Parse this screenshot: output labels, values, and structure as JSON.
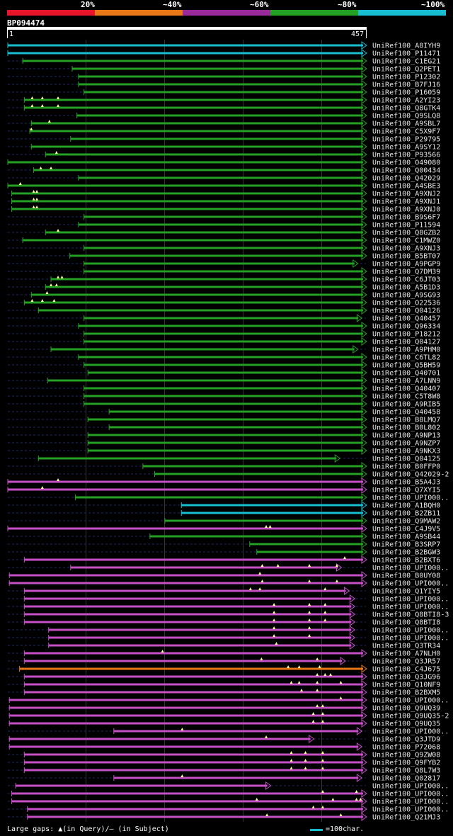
{
  "legend": {
    "segments": [
      {
        "label": "20%",
        "color": "#e8152a"
      },
      {
        "label": "~40%",
        "color": "#e87817"
      },
      {
        "label": "~60%",
        "color": "#9a2a9a"
      },
      {
        "label": "~80%",
        "color": "#24a024"
      },
      {
        "label": "~100%",
        "color": "#17becf"
      }
    ]
  },
  "query": {
    "id": "BP094474",
    "start_label": "1",
    "end_label": "457",
    "length": 457
  },
  "footer": {
    "gaps_text": "Large gaps: ▲(in Query)/– (in Subject)",
    "scale_text": "=100char."
  },
  "colors": {
    "cyan": "#17becf",
    "green": "#24a024",
    "purple": "#c64fc6",
    "orange": "#e87817",
    "dash": "#1a2a66",
    "marker": "#ffff99"
  },
  "chart_data": {
    "type": "alignment",
    "x_units": "query residue position",
    "x_range": [
      1,
      457
    ],
    "hits": [
      {
        "name": "UniRef100_A8IYH9",
        "color": "cyan",
        "start": 1,
        "end": 457,
        "markers": []
      },
      {
        "name": "UniRef100_P11471",
        "color": "cyan",
        "start": 1,
        "end": 457,
        "markers": []
      },
      {
        "name": "UniRef100_C1EG21",
        "color": "green",
        "start": 20,
        "end": 457,
        "markers": []
      },
      {
        "name": "UniRef100_Q2PET1",
        "color": "green",
        "start": 83,
        "end": 457,
        "markers": []
      },
      {
        "name": "UniRef100_P12302",
        "color": "green",
        "start": 91,
        "end": 457,
        "markers": []
      },
      {
        "name": "UniRef100_B7FJ16",
        "color": "green",
        "start": 91,
        "end": 457,
        "markers": []
      },
      {
        "name": "UniRef100_P16059",
        "color": "green",
        "start": 98,
        "end": 457,
        "markers": []
      },
      {
        "name": "UniRef100_A2YI23",
        "color": "green",
        "start": 22,
        "end": 457,
        "markers": [
          32,
          45,
          65
        ]
      },
      {
        "name": "UniRef100_Q8GTK4",
        "color": "green",
        "start": 22,
        "end": 457,
        "markers": [
          32,
          45,
          65
        ]
      },
      {
        "name": "UniRef100_Q9SLQ8",
        "color": "green",
        "start": 89,
        "end": 457,
        "markers": []
      },
      {
        "name": "UniRef100_A9SBL7",
        "color": "green",
        "start": 31,
        "end": 457,
        "markers": [
          54
        ]
      },
      {
        "name": "UniRef100_C5X9F7",
        "color": "green",
        "start": 29,
        "end": 457,
        "markers": [
          31
        ]
      },
      {
        "name": "UniRef100_P29795",
        "color": "green",
        "start": 81,
        "end": 457,
        "markers": []
      },
      {
        "name": "UniRef100_A9SY12",
        "color": "green",
        "start": 31,
        "end": 457,
        "markers": []
      },
      {
        "name": "UniRef100_P93566",
        "color": "green",
        "start": 49,
        "end": 457,
        "markers": [
          63
        ]
      },
      {
        "name": "UniRef100_O49080",
        "color": "green",
        "start": 1,
        "end": 457,
        "markers": []
      },
      {
        "name": "UniRef100_Q00434",
        "color": "green",
        "start": 34,
        "end": 457,
        "markers": [
          43,
          56
        ]
      },
      {
        "name": "UniRef100_Q42029",
        "color": "green",
        "start": 91,
        "end": 457,
        "markers": []
      },
      {
        "name": "UniRef100_A4SBE3",
        "color": "green",
        "start": 1,
        "end": 457,
        "markers": [
          17
        ]
      },
      {
        "name": "UniRef100_A9XNJ2",
        "color": "green",
        "start": 6,
        "end": 457,
        "markers": [
          34,
          38
        ]
      },
      {
        "name": "UniRef100_A9XNJ1",
        "color": "green",
        "start": 6,
        "end": 457,
        "markers": [
          34,
          38
        ]
      },
      {
        "name": "UniRef100_A9XNJ0",
        "color": "green",
        "start": 6,
        "end": 457,
        "markers": [
          34,
          38
        ]
      },
      {
        "name": "UniRef100_B9S6F7",
        "color": "green",
        "start": 98,
        "end": 457,
        "markers": []
      },
      {
        "name": "UniRef100_P11594",
        "color": "green",
        "start": 91,
        "end": 457,
        "markers": []
      },
      {
        "name": "UniRef100_Q8GZB2",
        "color": "green",
        "start": 49,
        "end": 457,
        "markers": [
          65
        ]
      },
      {
        "name": "UniRef100_C1MWZ0",
        "color": "green",
        "start": 20,
        "end": 457,
        "markers": []
      },
      {
        "name": "UniRef100_A9XNJ3",
        "color": "green",
        "start": 98,
        "end": 457,
        "markers": []
      },
      {
        "name": "UniRef100_B5BT07",
        "color": "green",
        "start": 80,
        "end": 457,
        "markers": []
      },
      {
        "name": "UniRef100_A9PGP9",
        "color": "green",
        "start": 98,
        "end": 446,
        "markers": []
      },
      {
        "name": "UniRef100_Q7DM39",
        "color": "green",
        "start": 98,
        "end": 457,
        "markers": []
      },
      {
        "name": "UniRef100_C6JT03",
        "color": "green",
        "start": 56,
        "end": 457,
        "markers": [
          65,
          70
        ]
      },
      {
        "name": "UniRef100_A5B1D3",
        "color": "green",
        "start": 49,
        "end": 457,
        "markers": [
          56,
          63
        ]
      },
      {
        "name": "UniRef100_A9SG93",
        "color": "green",
        "start": 31,
        "end": 457,
        "markers": [
          51
        ]
      },
      {
        "name": "UniRef100_O22536",
        "color": "green",
        "start": 22,
        "end": 457,
        "markers": [
          32,
          45,
          60
        ]
      },
      {
        "name": "UniRef100_Q04126",
        "color": "green",
        "start": 40,
        "end": 457,
        "markers": []
      },
      {
        "name": "UniRef100_Q40457",
        "color": "green",
        "start": 98,
        "end": 451,
        "markers": []
      },
      {
        "name": "UniRef100_Q96334",
        "color": "green",
        "start": 91,
        "end": 457,
        "markers": []
      },
      {
        "name": "UniRef100_P18212",
        "color": "green",
        "start": 98,
        "end": 457,
        "markers": []
      },
      {
        "name": "UniRef100_Q04127",
        "color": "green",
        "start": 98,
        "end": 457,
        "markers": []
      },
      {
        "name": "UniRef100_A9PHM0",
        "color": "green",
        "start": 56,
        "end": 446,
        "markers": []
      },
      {
        "name": "UniRef100_C6TL82",
        "color": "green",
        "start": 91,
        "end": 457,
        "markers": []
      },
      {
        "name": "UniRef100_Q5BH59",
        "color": "green",
        "start": 98,
        "end": 457,
        "markers": []
      },
      {
        "name": "UniRef100_Q40701",
        "color": "green",
        "start": 103,
        "end": 457,
        "markers": []
      },
      {
        "name": "UniRef100_A7LNN9",
        "color": "green",
        "start": 52,
        "end": 457,
        "markers": []
      },
      {
        "name": "UniRef100_Q40407",
        "color": "green",
        "start": 98,
        "end": 457,
        "markers": []
      },
      {
        "name": "UniRef100_C5T8W8",
        "color": "green",
        "start": 98,
        "end": 457,
        "markers": []
      },
      {
        "name": "UniRef100_A9RIB5",
        "color": "green",
        "start": 98,
        "end": 457,
        "markers": []
      },
      {
        "name": "UniRef100_Q40458",
        "color": "green",
        "start": 130,
        "end": 457,
        "markers": []
      },
      {
        "name": "UniRef100_B8LMQ7",
        "color": "green",
        "start": 103,
        "end": 457,
        "markers": []
      },
      {
        "name": "UniRef100_B0L802",
        "color": "green",
        "start": 130,
        "end": 457,
        "markers": []
      },
      {
        "name": "UniRef100_A9NP13",
        "color": "green",
        "start": 103,
        "end": 457,
        "markers": []
      },
      {
        "name": "UniRef100_A9NZP7",
        "color": "green",
        "start": 103,
        "end": 457,
        "markers": []
      },
      {
        "name": "UniRef100_A9NKX3",
        "color": "green",
        "start": 103,
        "end": 457,
        "markers": []
      },
      {
        "name": "UniRef100_Q04125",
        "color": "green",
        "start": 40,
        "end": 423,
        "markers": []
      },
      {
        "name": "UniRef100_B0FFP0",
        "color": "green",
        "start": 173,
        "end": 457,
        "markers": []
      },
      {
        "name": "UniRef100_Q42029-2",
        "color": "green",
        "start": 188,
        "end": 457,
        "markers": []
      },
      {
        "name": "UniRef100_B5A4J3",
        "color": "purple",
        "start": 1,
        "end": 457,
        "markers": [
          65
        ]
      },
      {
        "name": "UniRef100_Q7XYI5",
        "color": "purple",
        "start": 1,
        "end": 457,
        "markers": [
          45
        ]
      },
      {
        "name": "UniRef100_UPI000..",
        "color": "green",
        "start": 87,
        "end": 457,
        "markers": []
      },
      {
        "name": "UniRef100_A1BQH0",
        "color": "cyan",
        "start": 222,
        "end": 457,
        "markers": []
      },
      {
        "name": "UniRef100_B2ZB11",
        "color": "cyan",
        "start": 222,
        "end": 457,
        "markers": []
      },
      {
        "name": "UniRef100_Q9MAW2",
        "color": "green",
        "start": 201,
        "end": 457,
        "markers": []
      },
      {
        "name": "UniRef100_C4J9V5",
        "color": "purple",
        "start": 1,
        "end": 457,
        "markers": [
          330,
          335
        ]
      },
      {
        "name": "UniRef100_A9SB44",
        "color": "green",
        "start": 182,
        "end": 457,
        "markers": []
      },
      {
        "name": "UniRef100_B3SRP7",
        "color": "green",
        "start": 309,
        "end": 457,
        "markers": []
      },
      {
        "name": "UniRef100_B2BGW3",
        "color": "green",
        "start": 318,
        "end": 457,
        "markers": []
      },
      {
        "name": "UniRef100_B2BXT6",
        "color": "purple",
        "start": 22,
        "end": 457,
        "markers": [
          430
        ]
      },
      {
        "name": "UniRef100_UPI000..",
        "color": "purple",
        "start": 81,
        "end": 425,
        "markers": [
          325,
          345,
          385,
          420
        ]
      },
      {
        "name": "UniRef100_B0UY08",
        "color": "purple",
        "start": 3,
        "end": 457,
        "markers": [
          322
        ]
      },
      {
        "name": "UniRef100_UPI000..",
        "color": "purple",
        "start": 3,
        "end": 457,
        "markers": [
          325,
          385,
          420
        ]
      },
      {
        "name": "UniRef100_Q1YIY5",
        "color": "purple",
        "start": 22,
        "end": 435,
        "markers": [
          310,
          322,
          405
        ]
      },
      {
        "name": "UniRef100_UPI000..",
        "color": "purple",
        "start": 22,
        "end": 442,
        "markers": []
      },
      {
        "name": "UniRef100_UPI000..",
        "color": "purple",
        "start": 22,
        "end": 442,
        "markers": [
          340,
          385,
          405
        ]
      },
      {
        "name": "UniRef100_Q8BTI8-3",
        "color": "purple",
        "start": 22,
        "end": 442,
        "markers": [
          340,
          385,
          405
        ]
      },
      {
        "name": "UniRef100_Q8BTI8",
        "color": "purple",
        "start": 22,
        "end": 442,
        "markers": [
          340,
          385,
          405
        ]
      },
      {
        "name": "UniRef100_UPI000..",
        "color": "purple",
        "start": 53,
        "end": 442,
        "markers": [
          340,
          385
        ]
      },
      {
        "name": "UniRef100_UPI000..",
        "color": "purple",
        "start": 53,
        "end": 442,
        "markers": [
          340,
          385
        ]
      },
      {
        "name": "UniRef100_Q3TR34",
        "color": "purple",
        "start": 53,
        "end": 442,
        "markers": [
          343
        ]
      },
      {
        "name": "UniRef100_A7NLH0",
        "color": "purple",
        "start": 22,
        "end": 457,
        "markers": [
          198
        ]
      },
      {
        "name": "UniRef100_Q3JR57",
        "color": "purple",
        "start": 22,
        "end": 430,
        "markers": [
          324,
          395
        ]
      },
      {
        "name": "UniRef100_C4J675",
        "color": "orange",
        "start": 16,
        "end": 457,
        "markers": [
          358,
          372,
          398
        ]
      },
      {
        "name": "UniRef100_Q3JG96",
        "color": "purple",
        "start": 22,
        "end": 457,
        "markers": [
          395,
          405,
          412
        ]
      },
      {
        "name": "UniRef100_Q10NF9",
        "color": "purple",
        "start": 22,
        "end": 457,
        "markers": [
          362,
          372,
          395,
          425
        ]
      },
      {
        "name": "UniRef100_B2BXM5",
        "color": "purple",
        "start": 22,
        "end": 457,
        "markers": [
          375,
          395
        ]
      },
      {
        "name": "UniRef100_UPI000..",
        "color": "purple",
        "start": 3,
        "end": 457,
        "markers": [
          425
        ]
      },
      {
        "name": "UniRef100_Q9UQ39",
        "color": "purple",
        "start": 3,
        "end": 457,
        "markers": [
          395,
          402
        ]
      },
      {
        "name": "UniRef100_Q9UQ35-2",
        "color": "purple",
        "start": 3,
        "end": 457,
        "markers": [
          390,
          402
        ]
      },
      {
        "name": "UniRef100_Q9UQ35",
        "color": "purple",
        "start": 3,
        "end": 457,
        "markers": [
          390,
          402
        ]
      },
      {
        "name": "UniRef100_UPI000..",
        "color": "purple",
        "start": 136,
        "end": 451,
        "markers": [
          223
        ]
      },
      {
        "name": "UniRef100_Q3JTD9",
        "color": "purple",
        "start": 3,
        "end": 390,
        "markers": [
          330
        ]
      },
      {
        "name": "UniRef100_P72068",
        "color": "purple",
        "start": 3,
        "end": 451,
        "markers": []
      },
      {
        "name": "UniRef100_Q9ZW08",
        "color": "purple",
        "start": 22,
        "end": 457,
        "markers": [
          362,
          380,
          402
        ]
      },
      {
        "name": "UniRef100_Q9FYB2",
        "color": "purple",
        "start": 22,
        "end": 457,
        "markers": [
          362,
          380,
          402
        ]
      },
      {
        "name": "UniRef100_Q8L7W3",
        "color": "purple",
        "start": 22,
        "end": 457,
        "markers": [
          362,
          380,
          402
        ]
      },
      {
        "name": "UniRef100_Q02817",
        "color": "purple",
        "start": 136,
        "end": 451,
        "markers": [
          223
        ]
      },
      {
        "name": "UniRef100_UPI000..",
        "color": "purple",
        "start": 11,
        "end": 335,
        "markers": []
      },
      {
        "name": "UniRef100_UPI000..",
        "color": "purple",
        "start": 6,
        "end": 457,
        "markers": [
          402,
          445
        ]
      },
      {
        "name": "UniRef100_UPI000..",
        "color": "purple",
        "start": 6,
        "end": 457,
        "markers": [
          318,
          415,
          445,
          450
        ]
      },
      {
        "name": "UniRef100_UPI000..",
        "color": "purple",
        "start": 26,
        "end": 457,
        "markers": [
          390,
          402
        ]
      },
      {
        "name": "UniRef100_Q21MJ3",
        "color": "purple",
        "start": 26,
        "end": 457,
        "markers": [
          331,
          425
        ]
      }
    ]
  }
}
